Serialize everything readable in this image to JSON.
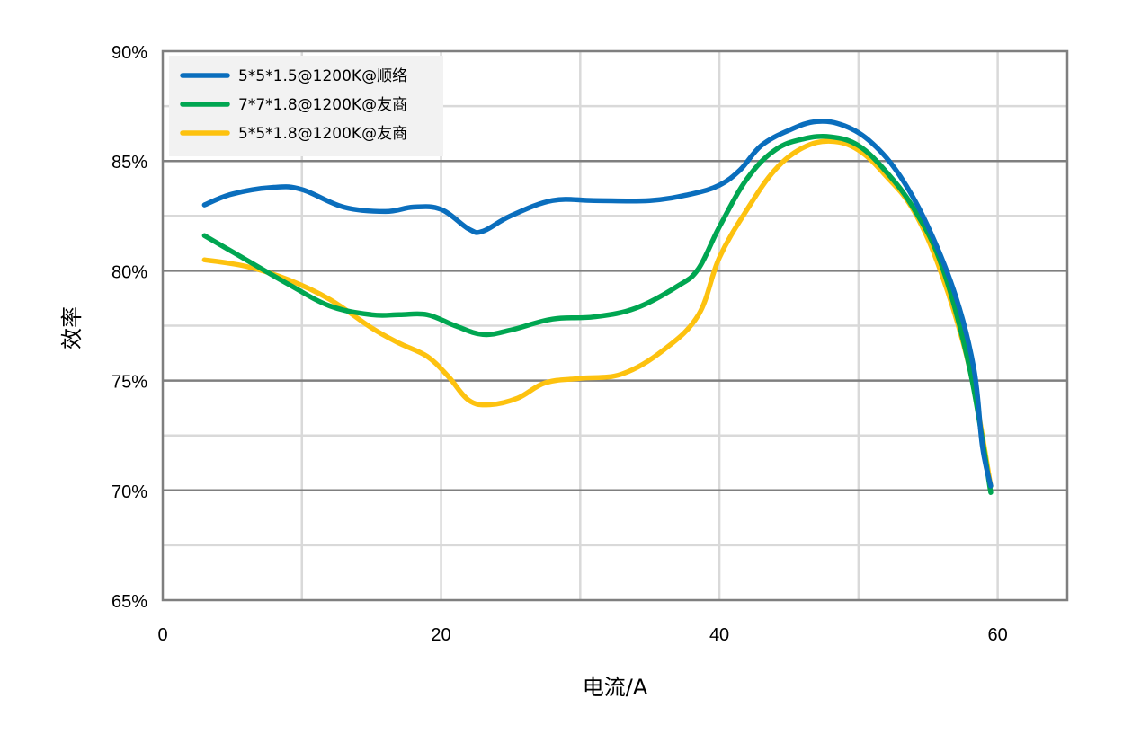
{
  "chart_data": {
    "type": "line",
    "xlabel": "电流/A",
    "ylabel": "效率",
    "xlim": [
      0,
      65
    ],
    "ylim": [
      65,
      90
    ],
    "xticks": [
      0,
      20,
      40,
      60
    ],
    "xtick_labels": [
      "0",
      "20",
      "40",
      "60"
    ],
    "yticks": [
      65,
      70,
      75,
      80,
      85,
      90
    ],
    "ytick_labels": [
      "65%",
      "70%",
      "75%",
      "80%",
      "85%",
      "90%"
    ],
    "grid": true,
    "legend_position": "top-left",
    "series": [
      {
        "name": "5*5*1.5@1200K@顺络",
        "color": "#0a6ebd",
        "x": [
          3,
          5,
          8,
          10,
          13,
          16,
          18,
          20,
          22,
          23,
          25,
          28,
          31,
          35,
          38,
          40,
          41.5,
          43,
          45,
          47,
          49,
          51,
          53,
          55,
          57,
          58.3,
          58.9,
          59.5
        ],
        "y": [
          83.0,
          83.5,
          83.8,
          83.7,
          82.9,
          82.7,
          82.9,
          82.8,
          81.9,
          81.8,
          82.5,
          83.2,
          83.2,
          83.2,
          83.5,
          83.9,
          84.6,
          85.7,
          86.4,
          86.8,
          86.6,
          85.8,
          84.3,
          82.0,
          78.8,
          75.5,
          72.0,
          70.2
        ]
      },
      {
        "name": "7*7*1.8@1200K@友商",
        "color": "#00a651",
        "x": [
          3,
          6,
          9,
          12,
          15,
          17,
          19,
          21,
          23,
          25,
          28,
          31,
          34,
          37,
          38.5,
          40,
          42,
          44,
          46,
          48,
          50,
          52,
          54,
          56,
          58,
          59.5
        ],
        "y": [
          81.6,
          80.5,
          79.4,
          78.4,
          78.0,
          78.0,
          78.0,
          77.5,
          77.1,
          77.3,
          77.8,
          77.9,
          78.3,
          79.3,
          80.1,
          82.0,
          84.2,
          85.5,
          86.0,
          86.1,
          85.7,
          84.5,
          82.8,
          80.2,
          75.5,
          69.9
        ]
      },
      {
        "name": "5*5*1.8@1200K@友商",
        "color": "#fdc20f",
        "x": [
          3,
          6,
          9,
          12,
          15,
          17,
          19,
          20.5,
          22,
          23.5,
          25.5,
          27.5,
          30,
          33,
          36,
          38.5,
          40,
          42,
          44,
          46,
          48,
          50,
          52,
          54,
          56,
          58,
          59.5
        ],
        "y": [
          80.5,
          80.2,
          79.6,
          78.7,
          77.4,
          76.7,
          76.1,
          75.2,
          74.1,
          73.9,
          74.2,
          74.9,
          75.1,
          75.3,
          76.4,
          78.0,
          80.6,
          82.8,
          84.6,
          85.6,
          85.9,
          85.5,
          84.3,
          82.7,
          79.8,
          75.5,
          70.2
        ]
      }
    ]
  }
}
